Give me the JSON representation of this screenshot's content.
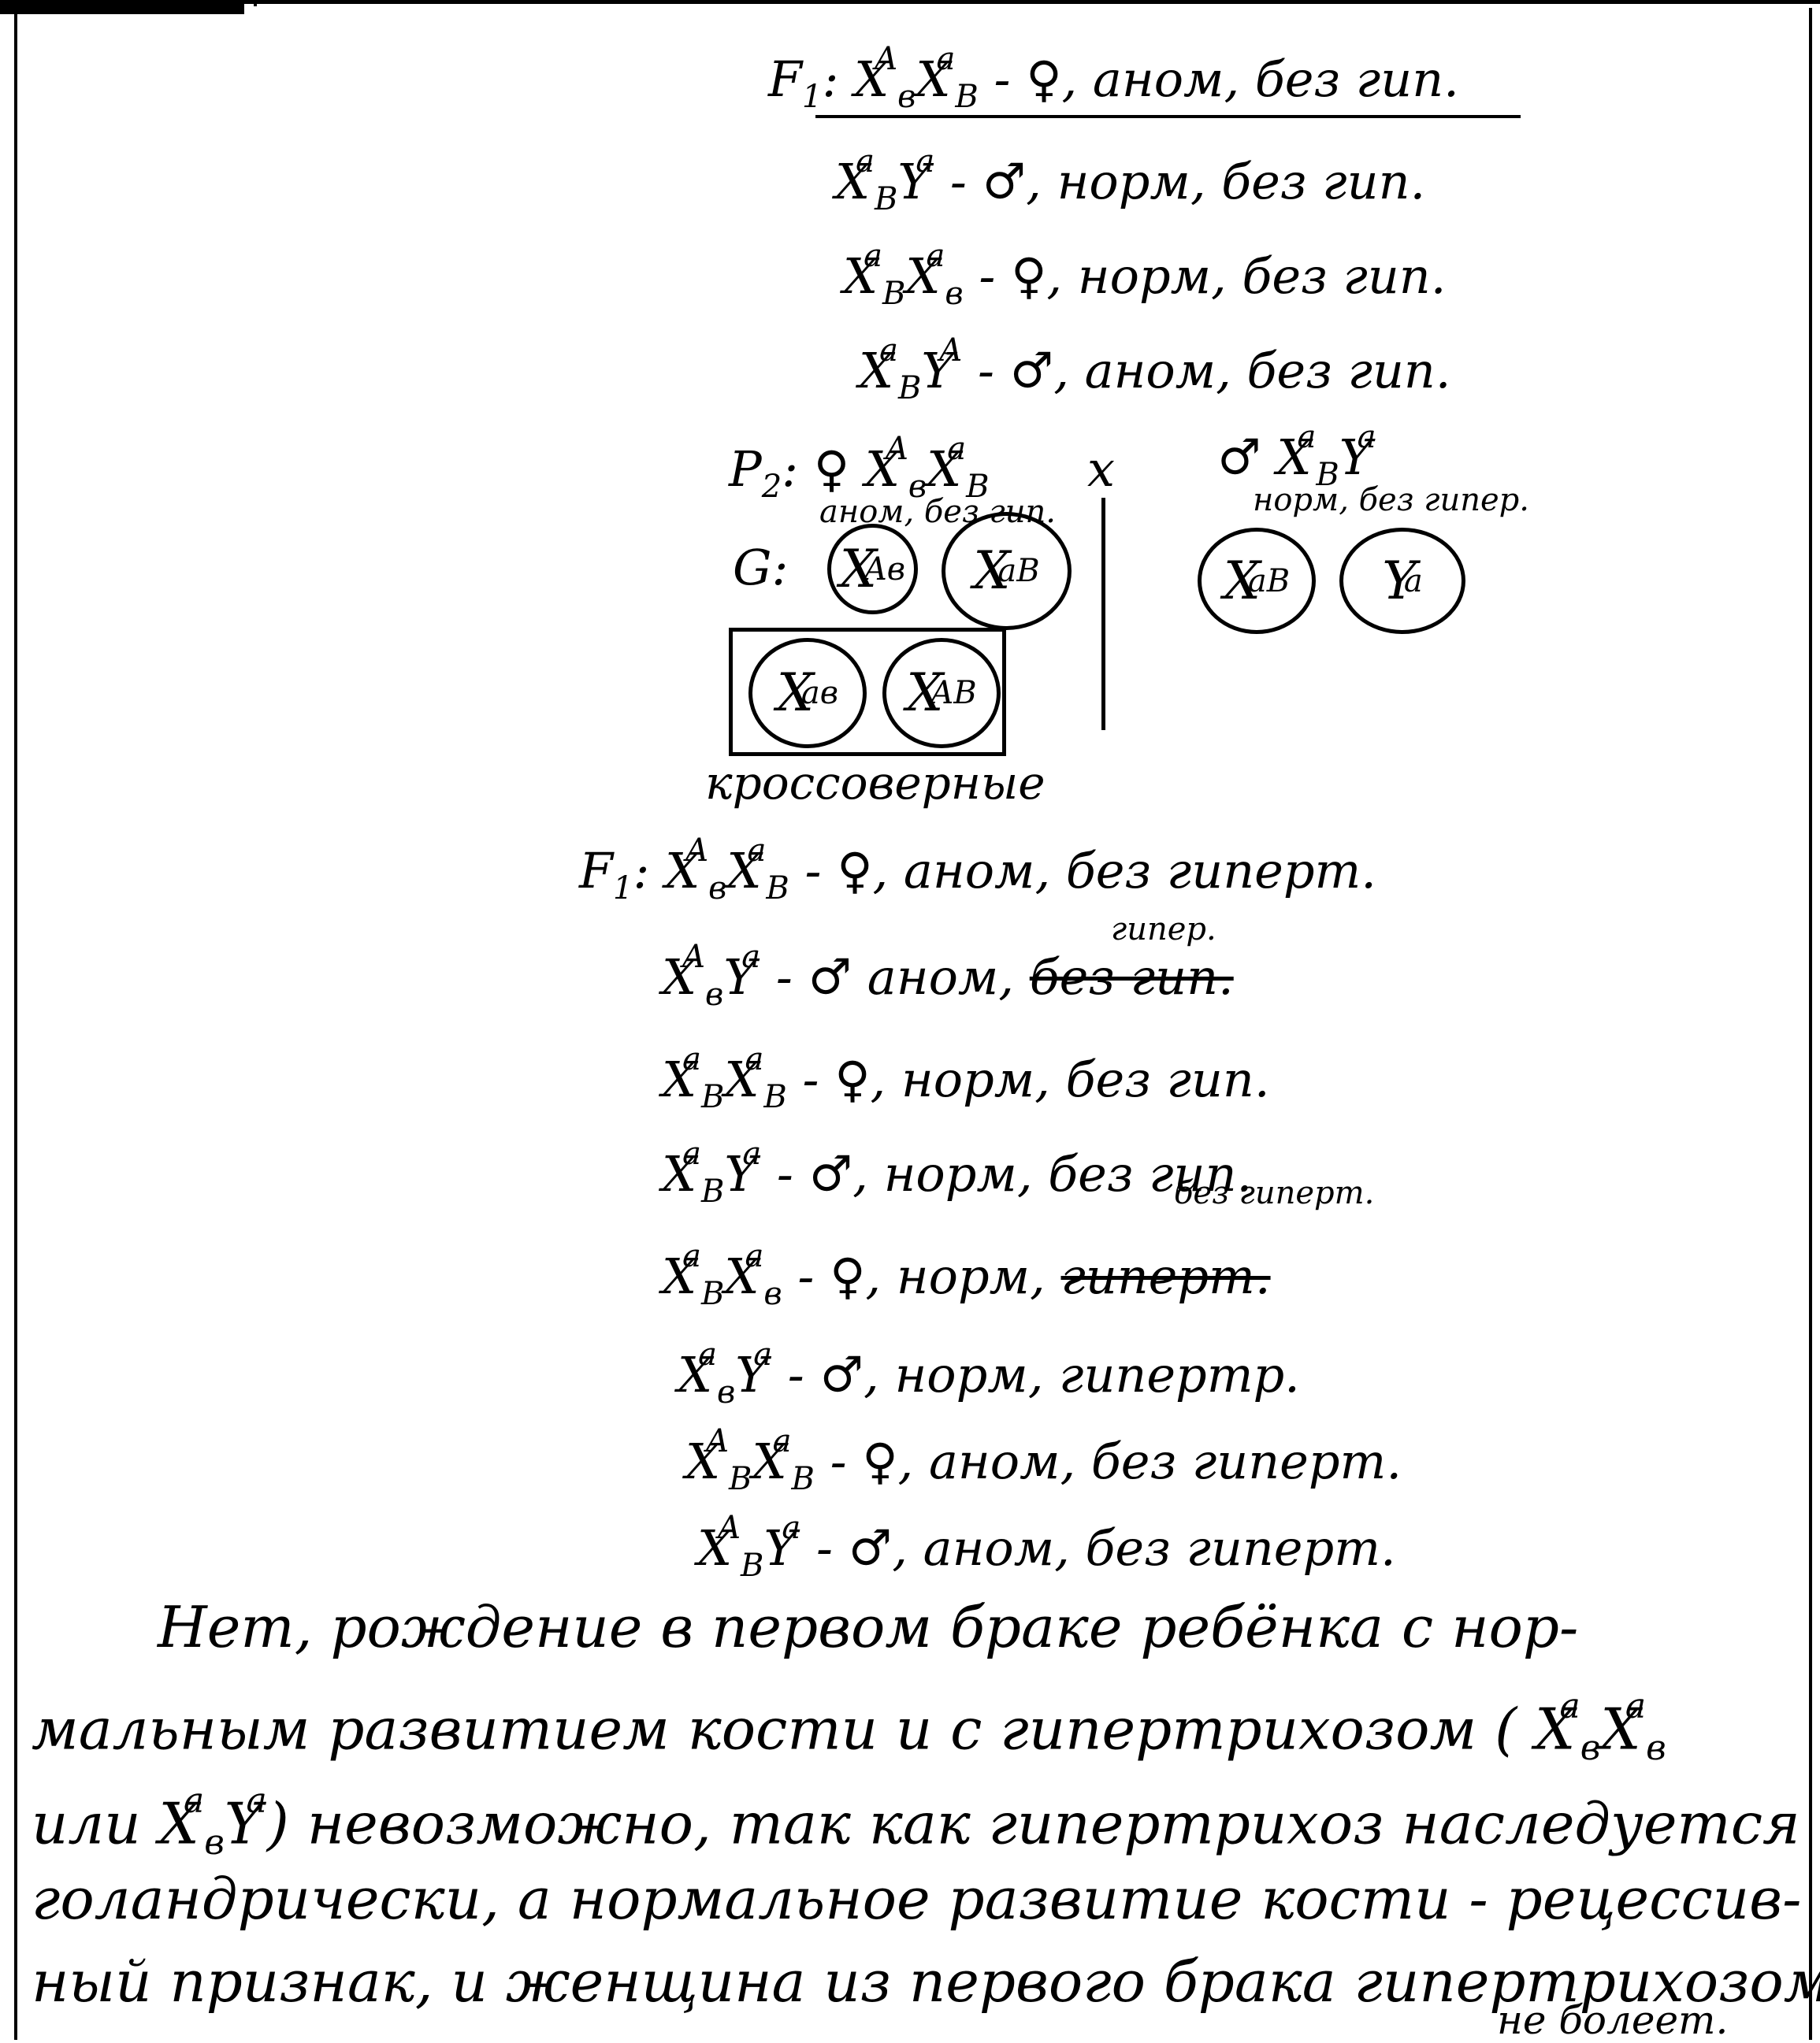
{
  "first": {
    "f1_label": "F",
    "f1_sub": "1",
    "rows": [
      {
        "g1": "X",
        "a1": "A",
        "b1": "в",
        "g2": "X",
        "a2": "a",
        "b2": "В",
        "desc": "- ♀, аном, без гип."
      },
      {
        "g1": "X",
        "a1": "a",
        "b1": "В",
        "g2": "Y",
        "a2": "a",
        "b2": "",
        "desc": "- ♂, норм, без гип."
      },
      {
        "g1": "X",
        "a1": "a",
        "b1": "В",
        "g2": "X",
        "a2": "a",
        "b2": "в",
        "desc": "- ♀, норм, без гип."
      },
      {
        "g1": "X",
        "a1": "a",
        "b1": "В",
        "g2": "Y",
        "a2": "A",
        "b2": "",
        "desc": "- ♂, аном, без гип."
      }
    ]
  },
  "p2": {
    "label": "P",
    "label_sub": "2",
    "female": ": ♀",
    "female_genotype": {
      "g1": "X",
      "a1": "A",
      "b1": "в",
      "g2": "X",
      "a2": "a",
      "b2": "В"
    },
    "cross": "x",
    "male": "♂",
    "male_genotype": {
      "g1": "X",
      "a1": "a",
      "b1": "В",
      "g2": "Y",
      "a2": "a"
    },
    "female_pheno": "аном, без гип.",
    "male_pheno": "норм, без гипер."
  },
  "gametes": {
    "label": "G:",
    "g1": {
      "g": "X",
      "a": "A",
      "b": "в"
    },
    "g2": {
      "g": "X",
      "a": "a",
      "b": "В"
    },
    "g3": {
      "g": "X",
      "a": "a",
      "b": "В"
    },
    "g4": {
      "g": "Y",
      "a": "a",
      "b": ""
    },
    "c1": {
      "g": "X",
      "a": "a",
      "b": "в"
    },
    "c2": {
      "g": "X",
      "a": "A",
      "b": "В"
    },
    "crossover_label": "кроссоверные"
  },
  "second": {
    "f1_label": "F",
    "f1_sub": "1",
    "rows": [
      {
        "g1": "X",
        "a1": "A",
        "b1": "в",
        "g2": "X",
        "a2": "a",
        "b2": "В",
        "desc": "- ♀, аном, без гиперт."
      },
      {
        "g1": "X",
        "a1": "A",
        "b1": "в",
        "g2": "Y",
        "a2": "a",
        "b2": "",
        "desc": "- ♂ аном,",
        "strike": "без гип.",
        "above": "гипер."
      },
      {
        "g1": "X",
        "a1": "a",
        "b1": "В",
        "g2": "X",
        "a2": "a",
        "b2": "В",
        "desc": "- ♀, норм, без гип."
      },
      {
        "g1": "X",
        "a1": "a",
        "b1": "В",
        "g2": "Y",
        "a2": "a",
        "b2": "",
        "desc": "- ♂, норм, без гип."
      },
      {
        "g1": "X",
        "a1": "a",
        "b1": "В",
        "g2": "X",
        "a2": "a",
        "b2": "в",
        "desc": "- ♀, норм,",
        "strike": "гиперт.",
        "above": "без гиперт."
      },
      {
        "g1": "X",
        "a1": "a",
        "b1": "в",
        "g2": "Y",
        "a2": "a",
        "b2": "",
        "desc": "- ♂, норм, гипертр."
      },
      {
        "g1": "X",
        "a1": "A",
        "b1": "В",
        "g2": "X",
        "a2": "a",
        "b2": "В",
        "desc": "- ♀, аном, без гиперт."
      },
      {
        "g1": "X",
        "a1": "A",
        "b1": "В",
        "g2": "Y",
        "a2": "a",
        "b2": "",
        "desc": "- ♂, аном, без гиперт."
      }
    ]
  },
  "paragraph": {
    "l1": "Нет, рождение в первом браке ребёнка с нор-",
    "l2a": "мальным развитием кости и с гипертрихозом (",
    "l2_g1": {
      "g": "X",
      "a": "a",
      "b": "в"
    },
    "l2_g2": {
      "g": "X",
      "a": "a",
      "b": "в"
    },
    "l3a": "или",
    "l3_g1": {
      "g": "X",
      "a": "a",
      "b": "в"
    },
    "l3_g2": {
      "g": "Y",
      "a": "a"
    },
    "l3b": ") невозможно, так как гипертрихоз наследуется",
    "l4": "голандрически, а нормальное развитие кости - рецессив-",
    "l5": "ный признак, и женщина из первого брака гипертрихозом",
    "l6": "не болеет."
  }
}
